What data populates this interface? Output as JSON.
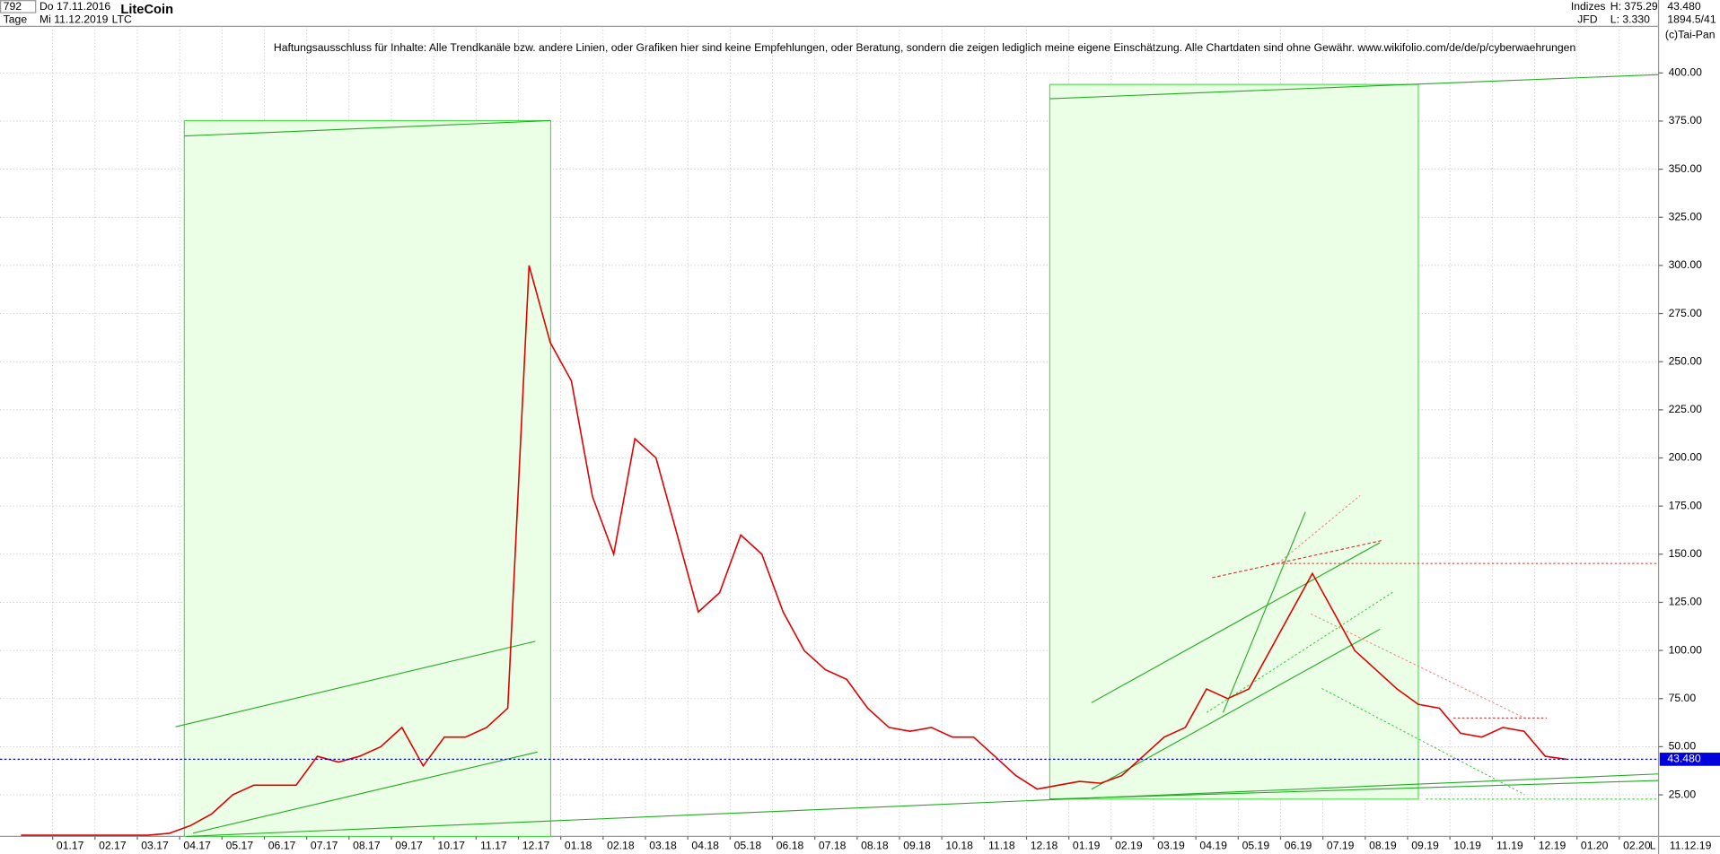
{
  "header": {
    "bar_count": "792",
    "date_from": "Do 17.11.2016",
    "period": "Tage",
    "date_to": "Mi 11.12.2019",
    "title": "LiteCoin",
    "symbol": "LTC",
    "group": "Indizes",
    "source": "JFD",
    "high": "H: 375.29",
    "low": "L: 3.330",
    "last": "43.480",
    "scale": "1894.5/41",
    "copyright": "(c)Tai-Pan"
  },
  "chart_data": {
    "type": "line",
    "subtitle": "Haftungsausschluss für Inhalte: Alle Trendkanäle bzw. andere Linien, oder Grafiken hier sind keine Empfehlungen, oder Beratung, sondern die zeigen lediglich meine eigene Einschätzung. Alle Chartdaten sind ohne Gewähr.  www.wikifolio.com/de/de/p/cyberwaehrungen",
    "categories": [
      null,
      null,
      "01.17",
      null,
      "02.17",
      null,
      "03.17",
      null,
      "04.17",
      null,
      "05.17",
      null,
      "06.17",
      null,
      "07.17",
      null,
      "08.17",
      null,
      "09.17",
      null,
      "10.17",
      null,
      "11.17",
      null,
      "12.17",
      null,
      "01.18",
      null,
      "02.18",
      null,
      "03.18",
      null,
      "04.18",
      null,
      "05.18",
      null,
      "06.18",
      null,
      "07.18",
      null,
      "08.18",
      null,
      "09.18",
      null,
      "10.18",
      null,
      "11.18",
      null,
      "12.18",
      null,
      "01.19",
      null,
      "02.19",
      null,
      "03.19",
      null,
      "04.19",
      null,
      "05.19",
      null,
      "06.19",
      null,
      "07.19",
      null,
      "08.19",
      null,
      "09.19",
      null,
      "10.19",
      null,
      "11.19",
      null,
      "12.19",
      null,
      "01.20",
      null,
      "02.20",
      null
    ],
    "series": [
      {
        "name": "LTC",
        "color": "#e00000",
        "values": [
          4,
          4,
          4,
          4,
          4,
          4,
          4,
          5,
          9,
          15,
          25,
          30,
          30,
          30,
          45,
          42,
          45,
          50,
          60,
          40,
          55,
          55,
          60,
          70,
          300,
          260,
          240,
          180,
          150,
          210,
          200,
          160,
          120,
          130,
          160,
          150,
          120,
          100,
          90,
          85,
          70,
          60,
          58,
          60,
          55,
          55,
          45,
          35,
          28,
          30,
          32,
          31,
          35,
          45,
          55,
          60,
          80,
          75,
          80,
          100,
          120,
          140,
          120,
          100,
          90,
          80,
          72,
          70,
          57,
          55,
          60,
          58,
          45,
          43.48,
          null,
          null,
          null,
          null
        ]
      }
    ],
    "current_price": {
      "value": 43.48,
      "label": "43.480"
    },
    "x_end_label": "11.12.19",
    "corner_label": "L",
    "ylim": [
      3.4,
      424.2
    ],
    "yticks": [
      {
        "value": 25,
        "label": "25.00"
      },
      {
        "value": 50,
        "label": "50.00"
      },
      {
        "value": 75,
        "label": "75.00"
      },
      {
        "value": 100,
        "label": "100.00"
      },
      {
        "value": 125,
        "label": "125.00"
      },
      {
        "value": 150,
        "label": "150.00"
      },
      {
        "value": 175,
        "label": "175.00"
      },
      {
        "value": 200,
        "label": "200.00"
      },
      {
        "value": 225,
        "label": "225.00"
      },
      {
        "value": 250,
        "label": "250.00"
      },
      {
        "value": 275,
        "label": "275.00"
      },
      {
        "value": 300,
        "label": "300.00"
      },
      {
        "value": 325,
        "label": "325.00"
      },
      {
        "value": 350,
        "label": "350.00"
      },
      {
        "value": 375,
        "label": "375.00"
      },
      {
        "value": 400,
        "label": "400.00"
      }
    ],
    "grid": true
  }
}
